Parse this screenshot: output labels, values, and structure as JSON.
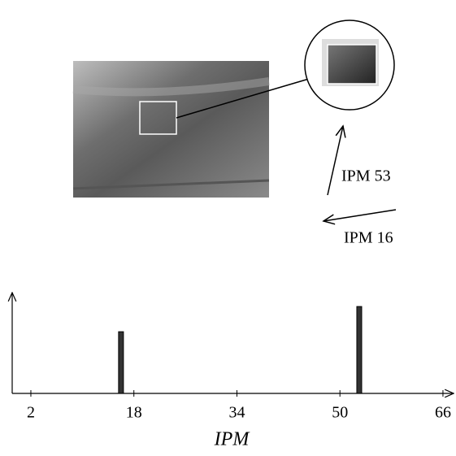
{
  "chart_data": {
    "type": "bar",
    "x": [
      16,
      53
    ],
    "values": [
      0.71,
      1.0
    ],
    "color": "#333333",
    "xlabel": "IPM",
    "xlim": [
      -0.9,
      67.9
    ],
    "xticks": [
      2,
      18,
      34,
      50,
      66
    ],
    "ylim": [
      0,
      1.16
    ],
    "annotations": [
      "IPM 53",
      "IPM 16"
    ]
  }
}
